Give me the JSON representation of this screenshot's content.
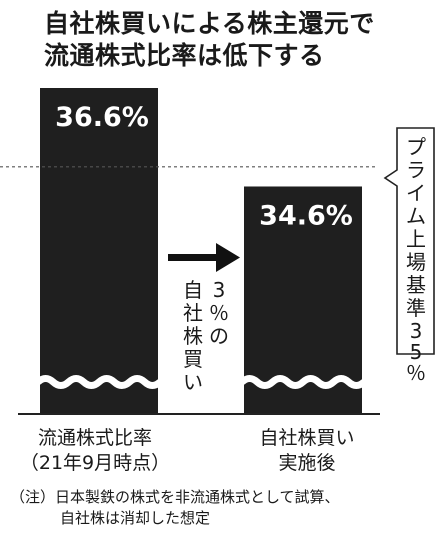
{
  "title_lines": [
    "自社株買いによる株主還元で",
    "流通株式比率は低下する"
  ],
  "chart_data": {
    "type": "bar",
    "categories": [
      {
        "label": "流通株式比率",
        "sublabel": "（21年9月時点）"
      },
      {
        "label": "自社株買い",
        "sublabel": "実施後"
      }
    ],
    "values": [
      36.6,
      34.6
    ],
    "value_labels": [
      "36.6%",
      "34.6%"
    ],
    "reference_line": {
      "value": 35,
      "label": "プライム上場基準35％"
    },
    "arrow_annotation": "3％の自社株買い",
    "axis_break": true,
    "bar_color": "#1f1f1f"
  },
  "notes": [
    "（注）日本製鉄の株式を非流通株式として試算、",
    "自社株は消却した想定"
  ]
}
